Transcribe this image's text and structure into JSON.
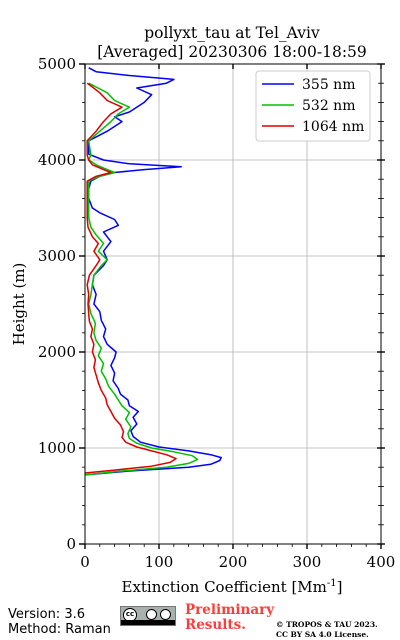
{
  "chart_data": {
    "type": "line",
    "title": "pollyxt_tau at Tel_Aviv",
    "subtitle": "[Averaged] 20230306 18:00-18:59",
    "xlabel": "Extinction Coefficient [Mm",
    "xlabel_superscript": "-1",
    "xlabel_close": "]",
    "ylabel": "Height (m)",
    "xlim": [
      0,
      400
    ],
    "ylim": [
      0,
      5000
    ],
    "x_ticks": [
      0,
      100,
      200,
      300,
      400
    ],
    "y_ticks": [
      0,
      1000,
      2000,
      3000,
      4000,
      5000
    ],
    "grid": true,
    "legend_position": "top-right",
    "series": [
      {
        "name": "355 nm",
        "color": "#0000ff",
        "points": [
          [
            0,
            720
          ],
          [
            60,
            760
          ],
          [
            140,
            800
          ],
          [
            170,
            830
          ],
          [
            182,
            870
          ],
          [
            184,
            900
          ],
          [
            170,
            930
          ],
          [
            140,
            970
          ],
          [
            100,
            1010
          ],
          [
            75,
            1060
          ],
          [
            65,
            1120
          ],
          [
            62,
            1180
          ],
          [
            70,
            1250
          ],
          [
            65,
            1320
          ],
          [
            72,
            1380
          ],
          [
            60,
            1440
          ],
          [
            58,
            1500
          ],
          [
            48,
            1560
          ],
          [
            45,
            1620
          ],
          [
            38,
            1700
          ],
          [
            40,
            1780
          ],
          [
            35,
            1860
          ],
          [
            40,
            1940
          ],
          [
            42,
            2000
          ],
          [
            30,
            2080
          ],
          [
            25,
            2160
          ],
          [
            28,
            2240
          ],
          [
            22,
            2330
          ],
          [
            20,
            2420
          ],
          [
            12,
            2500
          ],
          [
            15,
            2600
          ],
          [
            10,
            2700
          ],
          [
            12,
            2800
          ],
          [
            25,
            2900
          ],
          [
            30,
            2960
          ],
          [
            25,
            3050
          ],
          [
            35,
            3150
          ],
          [
            25,
            3250
          ],
          [
            45,
            3320
          ],
          [
            40,
            3380
          ],
          [
            20,
            3450
          ],
          [
            10,
            3500
          ],
          [
            5,
            3600
          ],
          [
            5,
            3700
          ],
          [
            8,
            3780
          ],
          [
            20,
            3830
          ],
          [
            40,
            3870
          ],
          [
            80,
            3900
          ],
          [
            130,
            3930
          ],
          [
            60,
            3960
          ],
          [
            25,
            4000
          ],
          [
            5,
            4060
          ],
          [
            5,
            4200
          ],
          [
            30,
            4300
          ],
          [
            50,
            4400
          ],
          [
            40,
            4450
          ],
          [
            60,
            4500
          ],
          [
            80,
            4600
          ],
          [
            90,
            4680
          ],
          [
            70,
            4750
          ],
          [
            110,
            4800
          ],
          [
            120,
            4840
          ],
          [
            60,
            4880
          ],
          [
            15,
            4920
          ],
          [
            5,
            4960
          ]
        ]
      },
      {
        "name": "532 nm",
        "color": "#00c000",
        "points": [
          [
            0,
            720
          ],
          [
            50,
            760
          ],
          [
            110,
            800
          ],
          [
            140,
            840
          ],
          [
            152,
            880
          ],
          [
            145,
            920
          ],
          [
            120,
            960
          ],
          [
            90,
            1000
          ],
          [
            70,
            1050
          ],
          [
            60,
            1100
          ],
          [
            58,
            1150
          ],
          [
            62,
            1220
          ],
          [
            55,
            1300
          ],
          [
            60,
            1370
          ],
          [
            50,
            1440
          ],
          [
            45,
            1500
          ],
          [
            40,
            1560
          ],
          [
            32,
            1640
          ],
          [
            28,
            1720
          ],
          [
            22,
            1800
          ],
          [
            25,
            1880
          ],
          [
            18,
            1960
          ],
          [
            22,
            2040
          ],
          [
            15,
            2120
          ],
          [
            12,
            2200
          ],
          [
            14,
            2300
          ],
          [
            8,
            2400
          ],
          [
            5,
            2500
          ],
          [
            8,
            2600
          ],
          [
            10,
            2700
          ],
          [
            12,
            2800
          ],
          [
            22,
            2900
          ],
          [
            30,
            2960
          ],
          [
            18,
            3050
          ],
          [
            25,
            3130
          ],
          [
            15,
            3220
          ],
          [
            8,
            3300
          ],
          [
            5,
            3400
          ],
          [
            5,
            3780
          ],
          [
            20,
            3830
          ],
          [
            40,
            3870
          ],
          [
            30,
            3900
          ],
          [
            15,
            3950
          ],
          [
            5,
            4000
          ],
          [
            8,
            4050
          ],
          [
            5,
            4200
          ],
          [
            20,
            4300
          ],
          [
            35,
            4400
          ],
          [
            45,
            4480
          ],
          [
            60,
            4550
          ],
          [
            40,
            4620
          ],
          [
            30,
            4700
          ],
          [
            15,
            4760
          ],
          [
            5,
            4800
          ]
        ]
      },
      {
        "name": "1064 nm",
        "color": "#dd0000",
        "points": [
          [
            0,
            740
          ],
          [
            40,
            770
          ],
          [
            90,
            810
          ],
          [
            115,
            850
          ],
          [
            123,
            890
          ],
          [
            110,
            930
          ],
          [
            90,
            970
          ],
          [
            70,
            1010
          ],
          [
            55,
            1060
          ],
          [
            50,
            1110
          ],
          [
            52,
            1170
          ],
          [
            48,
            1240
          ],
          [
            40,
            1310
          ],
          [
            35,
            1380
          ],
          [
            30,
            1450
          ],
          [
            28,
            1520
          ],
          [
            22,
            1600
          ],
          [
            18,
            1680
          ],
          [
            15,
            1760
          ],
          [
            12,
            1840
          ],
          [
            14,
            1920
          ],
          [
            10,
            2000
          ],
          [
            12,
            2080
          ],
          [
            8,
            2160
          ],
          [
            10,
            2240
          ],
          [
            6,
            2320
          ],
          [
            5,
            2400
          ],
          [
            4,
            2500
          ],
          [
            5,
            2600
          ],
          [
            3,
            2700
          ],
          [
            6,
            2800
          ],
          [
            15,
            2900
          ],
          [
            20,
            2960
          ],
          [
            12,
            3050
          ],
          [
            18,
            3130
          ],
          [
            10,
            3200
          ],
          [
            4,
            3300
          ],
          [
            3,
            3400
          ],
          [
            3,
            3780
          ],
          [
            15,
            3830
          ],
          [
            35,
            3870
          ],
          [
            25,
            3900
          ],
          [
            10,
            3950
          ],
          [
            5,
            4000
          ],
          [
            3,
            4050
          ],
          [
            3,
            4200
          ],
          [
            15,
            4300
          ],
          [
            25,
            4400
          ],
          [
            35,
            4480
          ],
          [
            50,
            4550
          ],
          [
            30,
            4620
          ],
          [
            20,
            4700
          ],
          [
            10,
            4760
          ],
          [
            3,
            4800
          ]
        ]
      }
    ]
  },
  "footer": {
    "version": "Version: 3.6",
    "method": "Method: Raman",
    "preliminary_line1": "Preliminary",
    "preliminary_line2": "Results.",
    "copyright_line1": "© TROPOS & TAU 2023.",
    "copyright_line2": "CC BY SA 4.0 License.",
    "cc_badge_text": "cc"
  }
}
